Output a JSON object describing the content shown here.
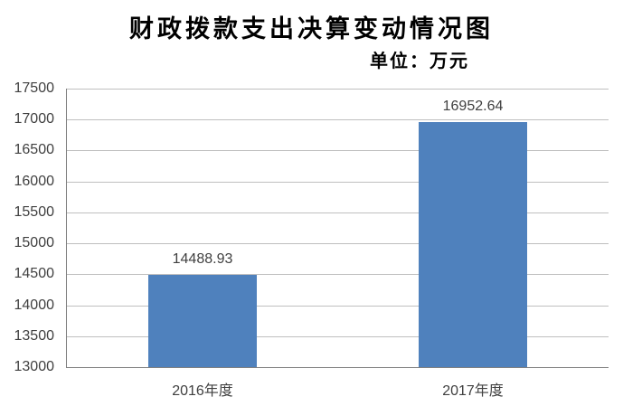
{
  "chart_data": {
    "type": "bar",
    "title": "财政拨款支出决算变动情况图",
    "unit_label": "单位：万元",
    "categories": [
      "2016年度",
      "2017年度"
    ],
    "values": [
      14488.93,
      16952.64
    ],
    "value_labels": [
      "14488.93",
      "16952.64"
    ],
    "xlabel": "",
    "ylabel": "",
    "y_axis": {
      "min": 13000,
      "max": 17500,
      "step": 500,
      "tick_labels": [
        "13000",
        "13500",
        "14000",
        "14500",
        "15000",
        "15500",
        "16000",
        "16500",
        "17000",
        "17500"
      ]
    },
    "grid": true,
    "legend_position": "none",
    "colors": {
      "bar_fill": "#4f81bd",
      "gridline": "#bfbfbf",
      "axis_line": "#808080",
      "label_text": "#404040",
      "title_text": "#000000",
      "background": "#ffffff"
    }
  }
}
